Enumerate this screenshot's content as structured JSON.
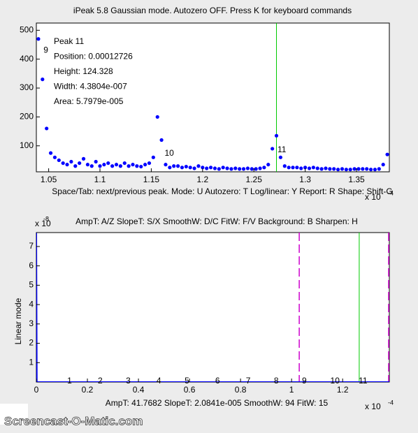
{
  "window_title": "iPeak 5.8  Gaussian mode.       Autozero OFF.    Press K for keyboard commands",
  "help_line_1": "Space/Tab: next/previous peak.  Mode: U   Autozero: T   Log/linear: Y   Report: R   Shape: Shift-G",
  "help_line_2": "AmpT: A/Z    SlopeT: S/X    SmoothW: D/C     FitW: F/V    Background: B    Sharpen: H",
  "status_line": "AmpT: 41.7682     SlopeT: 2.0841e-005     SmoothW: 94     FitW: 15",
  "watermark": "Screencast-O-Matic.com",
  "chart_data": [
    {
      "type": "scatter",
      "info": [
        "Peak 11",
        "Position: 0.00012726",
        "Height: 124.328",
        "Width: 4.3804e-007",
        "Area: 5.7979e-005"
      ],
      "x_multiplier": "x 10",
      "x_multiplier_exp": "-4",
      "xlim": [
        1.038,
        1.382
      ],
      "xticks": [
        1.05,
        1.1,
        1.15,
        1.2,
        1.25,
        1.3,
        1.35
      ],
      "ylim": [
        10,
        525
      ],
      "yticks": [
        100,
        200,
        300,
        400,
        500
      ],
      "color": "#0000ff",
      "cursor": {
        "x": 1.272,
        "color": "#00cc00"
      },
      "annotations": [
        {
          "text": "9",
          "x": 1.045,
          "y": 430
        },
        {
          "text": "10",
          "x": 1.163,
          "y": 73
        },
        {
          "text": "11",
          "x": 1.273,
          "y": 85
        }
      ],
      "x": [
        1.04,
        1.044,
        1.048,
        1.052,
        1.056,
        1.06,
        1.064,
        1.068,
        1.072,
        1.076,
        1.08,
        1.084,
        1.088,
        1.092,
        1.096,
        1.1,
        1.104,
        1.108,
        1.112,
        1.116,
        1.12,
        1.124,
        1.128,
        1.132,
        1.136,
        1.14,
        1.144,
        1.148,
        1.152,
        1.156,
        1.16,
        1.164,
        1.168,
        1.172,
        1.176,
        1.18,
        1.184,
        1.188,
        1.192,
        1.196,
        1.2,
        1.204,
        1.208,
        1.212,
        1.216,
        1.22,
        1.224,
        1.228,
        1.232,
        1.236,
        1.24,
        1.244,
        1.248,
        1.252,
        1.256,
        1.26,
        1.264,
        1.268,
        1.272,
        1.276,
        1.28,
        1.284,
        1.288,
        1.292,
        1.296,
        1.3,
        1.304,
        1.308,
        1.312,
        1.316,
        1.32,
        1.324,
        1.328,
        1.332,
        1.336,
        1.34,
        1.344,
        1.348,
        1.352,
        1.356,
        1.36,
        1.364,
        1.368,
        1.372,
        1.376,
        1.38
      ],
      "values": [
        470,
        330,
        160,
        75,
        60,
        50,
        40,
        35,
        45,
        30,
        40,
        55,
        35,
        30,
        45,
        30,
        35,
        40,
        30,
        35,
        30,
        40,
        30,
        35,
        30,
        28,
        35,
        40,
        60,
        200,
        120,
        35,
        25,
        30,
        30,
        25,
        28,
        25,
        22,
        30,
        25,
        22,
        25,
        22,
        20,
        25,
        22,
        20,
        22,
        20,
        20,
        22,
        20,
        20,
        22,
        25,
        35,
        90,
        135,
        60,
        30,
        25,
        25,
        25,
        22,
        25,
        22,
        25,
        22,
        20,
        22,
        20,
        20,
        18,
        20,
        18,
        18,
        20,
        20,
        20,
        20,
        18,
        18,
        20,
        35,
        70
      ]
    },
    {
      "type": "line",
      "y_label": "Linear mode",
      "x_multiplier": "x 10",
      "x_multiplier_exp": "-4",
      "y_multiplier": "x 10",
      "y_multiplier_exp": "-8",
      "xlim": [
        0,
        1.383
      ],
      "xticks": [
        0,
        0.2,
        0.4,
        0.6,
        0.8,
        1,
        1.2
      ],
      "ylim": [
        0,
        7.72
      ],
      "yticks": [
        1,
        2,
        3,
        4,
        5,
        6,
        7
      ],
      "series": [
        {
          "color": "#0000ff",
          "x": [
            0,
            0.002,
            0.05,
            1.383
          ],
          "values": [
            7.7,
            0,
            0,
            0
          ]
        }
      ],
      "cursor": {
        "x": 1.265,
        "color": "#00cc00"
      },
      "bounds": {
        "x": [
          1.03,
          1.383
        ],
        "color": "#cc00cc"
      },
      "peak_labels": [
        {
          "text": "1",
          "x": 0.13
        },
        {
          "text": "2",
          "x": 0.25
        },
        {
          "text": "3",
          "x": 0.36
        },
        {
          "text": "4",
          "x": 0.48
        },
        {
          "text": "5",
          "x": 0.59
        },
        {
          "text": "6",
          "x": 0.71
        },
        {
          "text": "7",
          "x": 0.83
        },
        {
          "text": "8",
          "x": 0.94
        },
        {
          "text": "9",
          "x": 1.05
        },
        {
          "text": "10",
          "x": 1.17
        },
        {
          "text": "11",
          "x": 1.28
        }
      ]
    }
  ]
}
